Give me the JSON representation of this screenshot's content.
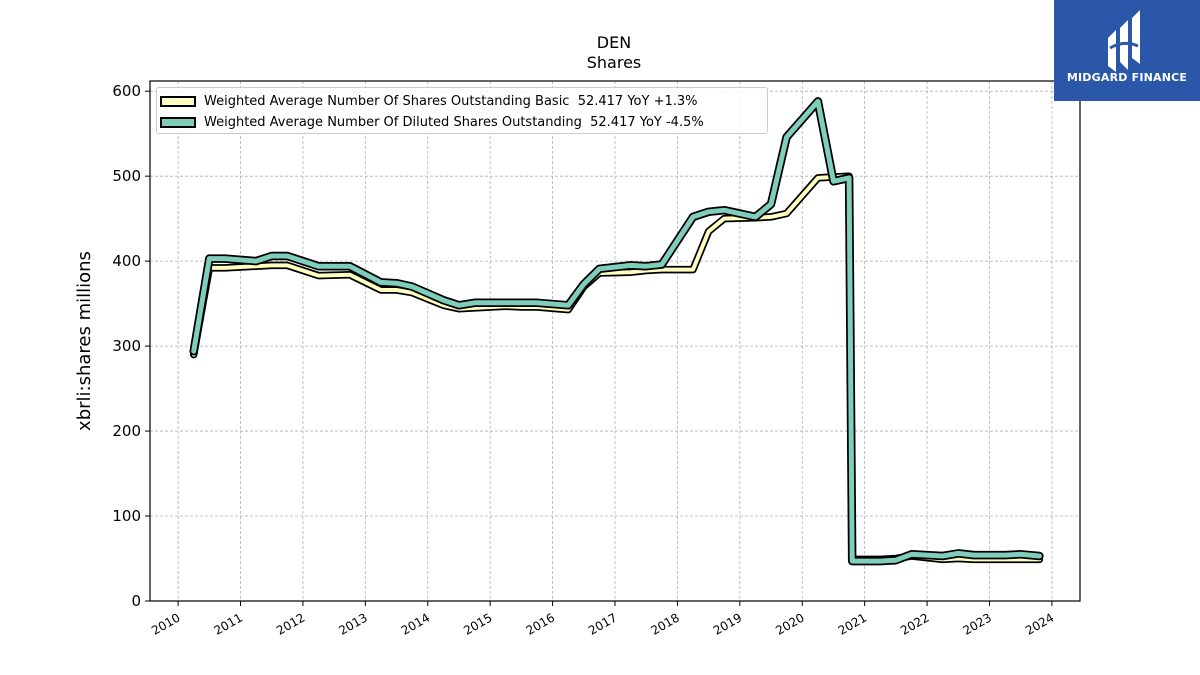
{
  "chart_data": {
    "type": "line",
    "title": "DEN",
    "subtitle": "Shares",
    "ylabel": "xbrli:shares millions",
    "xlabel": "",
    "xlim": [
      2009.55,
      2024.45
    ],
    "ylim": [
      0,
      612
    ],
    "yticks": [
      0,
      100,
      200,
      300,
      400,
      500,
      600
    ],
    "xticks": [
      2010,
      2011,
      2012,
      2013,
      2014,
      2015,
      2016,
      2017,
      2018,
      2019,
      2020,
      2021,
      2022,
      2023,
      2024
    ],
    "grid": true,
    "legend_position": "top-left",
    "series": [
      {
        "name": "Weighted Average Number Of Shares Outstanding Basic  52.417 YoY +1.3%",
        "color": "#ffffc0",
        "width": 4,
        "points": [
          [
            2010.25,
            290
          ],
          [
            2010.5,
            392
          ],
          [
            2010.75,
            392
          ],
          [
            2011.25,
            394
          ],
          [
            2011.5,
            395
          ],
          [
            2011.75,
            395
          ],
          [
            2012.25,
            383
          ],
          [
            2012.75,
            384
          ],
          [
            2013.25,
            366
          ],
          [
            2013.5,
            366
          ],
          [
            2013.75,
            363
          ],
          [
            2014.25,
            348
          ],
          [
            2014.5,
            344
          ],
          [
            2014.75,
            345
          ],
          [
            2015.25,
            347
          ],
          [
            2015.5,
            346
          ],
          [
            2015.75,
            346
          ],
          [
            2016.25,
            343
          ],
          [
            2016.5,
            370
          ],
          [
            2016.75,
            386
          ],
          [
            2017.25,
            387
          ],
          [
            2017.5,
            389
          ],
          [
            2017.75,
            390
          ],
          [
            2018.25,
            390
          ],
          [
            2018.5,
            435
          ],
          [
            2018.75,
            450
          ],
          [
            2019.25,
            451
          ],
          [
            2019.5,
            452
          ],
          [
            2019.75,
            456
          ],
          [
            2020.25,
            498
          ],
          [
            2020.5,
            499
          ],
          [
            2020.75,
            500
          ],
          [
            2020.8,
            49
          ],
          [
            2021.25,
            49
          ],
          [
            2021.5,
            50
          ],
          [
            2021.75,
            53
          ],
          [
            2022.25,
            49
          ],
          [
            2022.5,
            50
          ],
          [
            2022.75,
            49
          ],
          [
            2023.25,
            49
          ],
          [
            2023.5,
            49
          ],
          [
            2023.8,
            49
          ]
        ]
      },
      {
        "name": "Weighted Average Number Of Diluted Shares Outstanding  52.417 YoY -4.5%",
        "color": "#7fcdbb",
        "width": 5,
        "points": [
          [
            2010.25,
            294
          ],
          [
            2010.5,
            403
          ],
          [
            2010.75,
            403
          ],
          [
            2011.25,
            400
          ],
          [
            2011.5,
            406
          ],
          [
            2011.75,
            406
          ],
          [
            2012.25,
            394
          ],
          [
            2012.75,
            394
          ],
          [
            2013.25,
            375
          ],
          [
            2013.5,
            374
          ],
          [
            2013.75,
            370
          ],
          [
            2014.25,
            354
          ],
          [
            2014.5,
            348
          ],
          [
            2014.75,
            351
          ],
          [
            2015.25,
            351
          ],
          [
            2015.5,
            351
          ],
          [
            2015.75,
            351
          ],
          [
            2016.25,
            348
          ],
          [
            2016.5,
            373
          ],
          [
            2016.75,
            391
          ],
          [
            2017.25,
            395
          ],
          [
            2017.5,
            394
          ],
          [
            2017.75,
            396
          ],
          [
            2018.25,
            452
          ],
          [
            2018.5,
            458
          ],
          [
            2018.75,
            460
          ],
          [
            2019.25,
            452
          ],
          [
            2019.5,
            467
          ],
          [
            2019.75,
            546
          ],
          [
            2020.25,
            588
          ],
          [
            2020.5,
            494
          ],
          [
            2020.75,
            498
          ],
          [
            2020.8,
            47
          ],
          [
            2021.25,
            47
          ],
          [
            2021.5,
            48
          ],
          [
            2021.75,
            55
          ],
          [
            2022.25,
            53
          ],
          [
            2022.5,
            56
          ],
          [
            2022.75,
            54
          ],
          [
            2023.25,
            54
          ],
          [
            2023.5,
            55
          ],
          [
            2023.8,
            53
          ]
        ]
      }
    ]
  },
  "logo": {
    "text": "MIDGARD FINANCE",
    "color": "#2b57a8"
  }
}
